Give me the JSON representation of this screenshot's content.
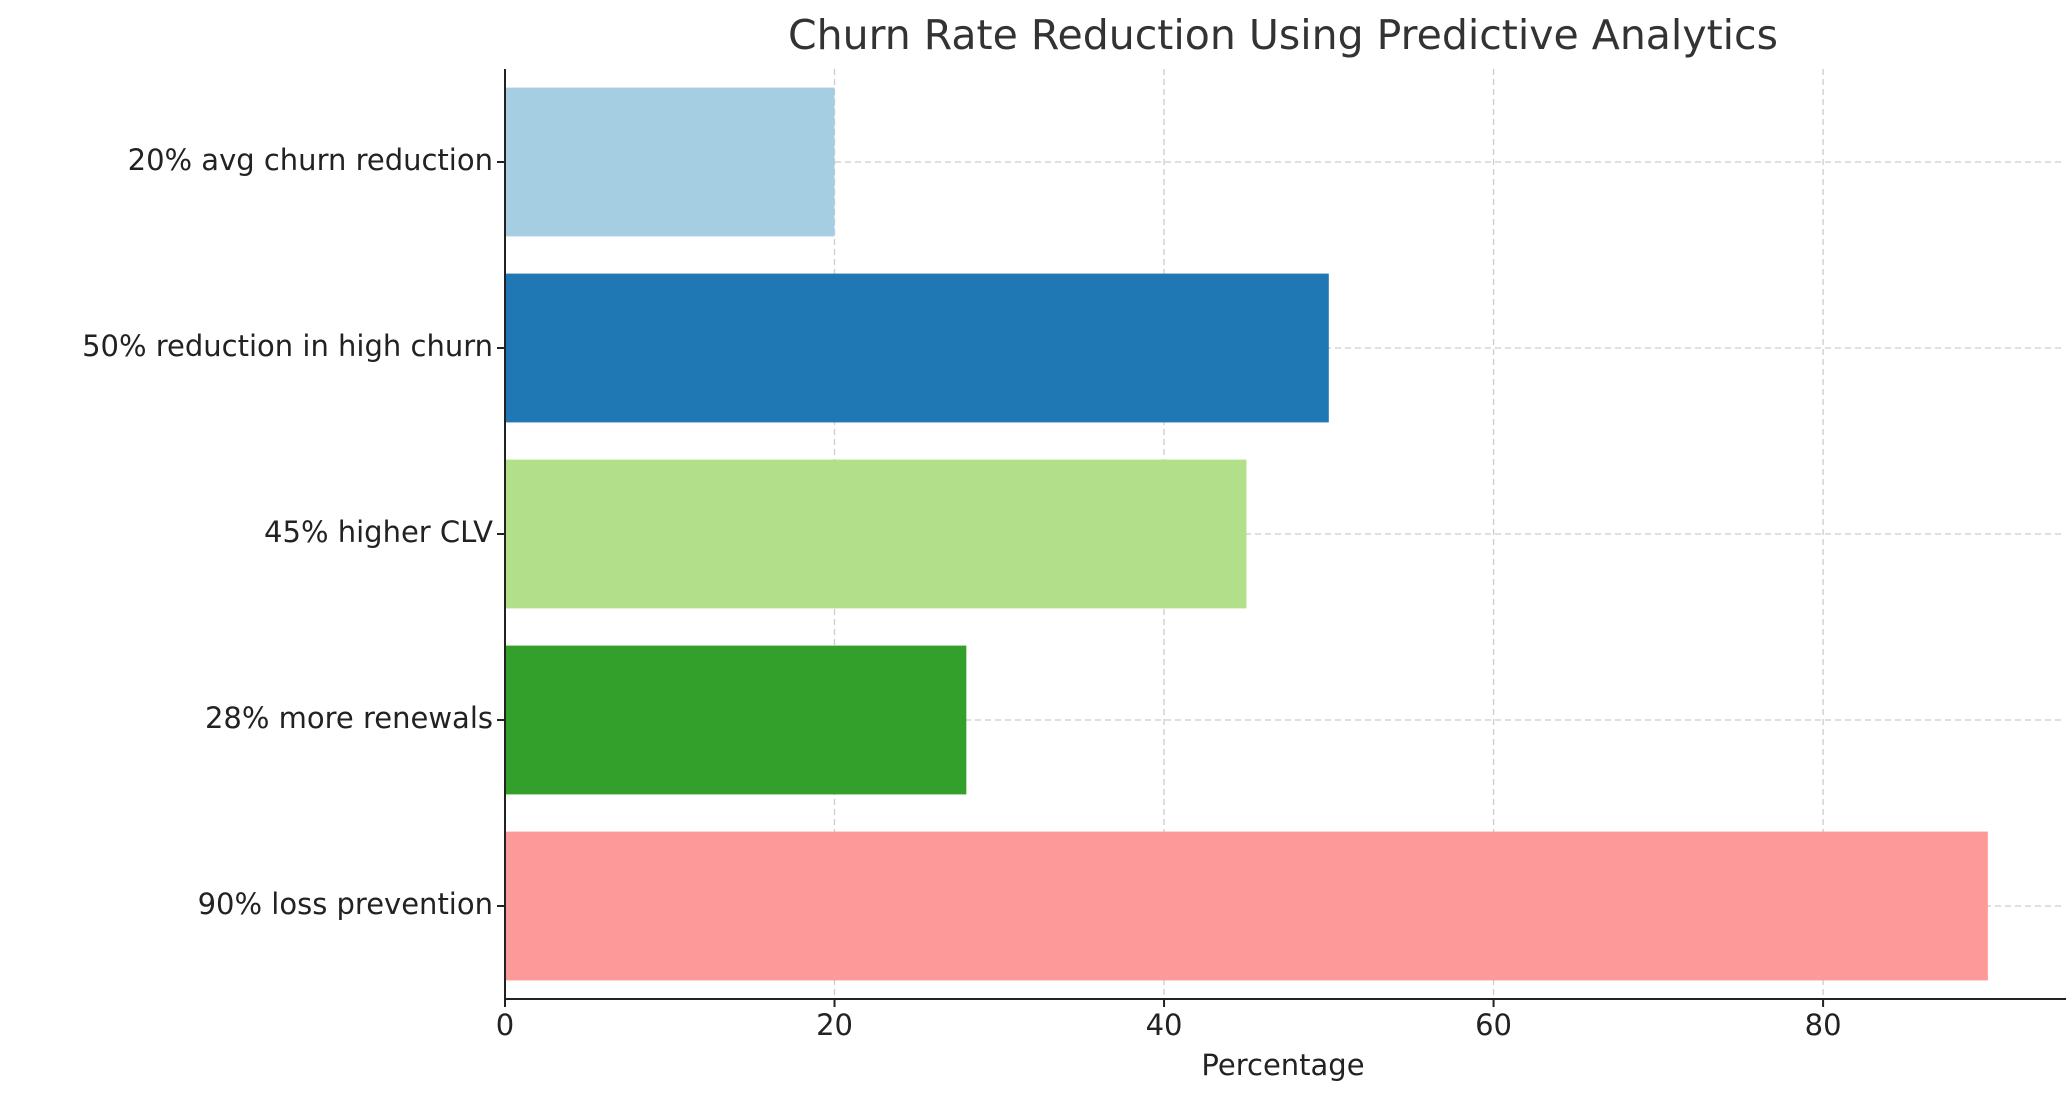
{
  "chart_data": {
    "type": "bar",
    "orientation": "horizontal",
    "title": "Churn Rate Reduction Using Predictive Analytics",
    "xlabel": "Percentage",
    "categories": [
      "20% avg churn reduction",
      "50% reduction in high churn",
      "45% higher CLV",
      "28% more renewals",
      "90% loss prevention"
    ],
    "values": [
      20,
      50,
      45,
      28,
      90
    ],
    "colors": [
      "#a6cee3",
      "#1f78b4",
      "#b2df8a",
      "#33a02c",
      "#fb9a99"
    ],
    "xlim": [
      0,
      94.5
    ],
    "xticks": [
      0,
      20,
      40,
      60,
      80
    ],
    "grid": true
  }
}
